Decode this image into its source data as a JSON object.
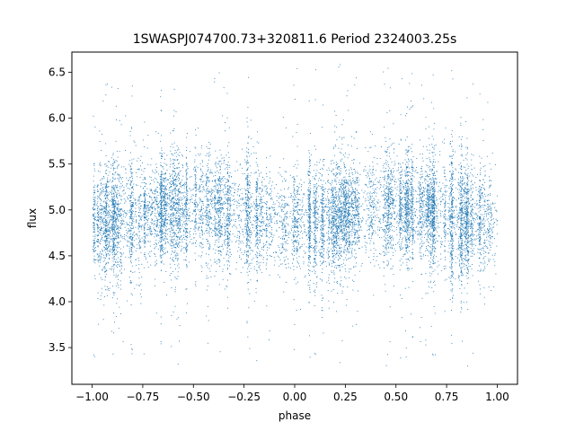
{
  "chart_data": {
    "type": "scatter",
    "title": "1SWASPJ074700.73+320811.6 Period 2324003.25s",
    "xlabel": "phase",
    "ylabel": "flux",
    "xlim": [
      -1.1,
      1.1
    ],
    "ylim": [
      3.1,
      6.72
    ],
    "xticks": [
      -1.0,
      -0.75,
      -0.5,
      -0.25,
      0.0,
      0.25,
      0.5,
      0.75,
      1.0
    ],
    "xtick_labels": [
      "−1.00",
      "−0.75",
      "−0.50",
      "−0.25",
      "0.00",
      "0.25",
      "0.50",
      "0.75",
      "1.00"
    ],
    "yticks": [
      3.5,
      4.0,
      4.5,
      5.0,
      5.5,
      6.0,
      6.5
    ],
    "ytick_labels": [
      "3.5",
      "4.0",
      "4.5",
      "5.0",
      "5.5",
      "6.0",
      "6.5"
    ],
    "grid": false,
    "marker_color": "#1f77b4",
    "series": [
      {
        "description": "phase-folded light curve, dense band of points",
        "x_range": [
          -1.0,
          1.0
        ],
        "center_flux": 4.95,
        "typical_flux_range": [
          4.3,
          5.6
        ],
        "outlier_flux_range": [
          3.3,
          6.6
        ],
        "sample_profile": [
          {
            "x": -1.0,
            "y": 4.9
          },
          {
            "x": -0.75,
            "y": 4.85
          },
          {
            "x": -0.5,
            "y": 5.05
          },
          {
            "x": -0.25,
            "y": 4.95
          },
          {
            "x": 0.0,
            "y": 4.75
          },
          {
            "x": 0.25,
            "y": 4.8
          },
          {
            "x": 0.5,
            "y": 5.05
          },
          {
            "x": 0.75,
            "y": 4.95
          },
          {
            "x": 1.0,
            "y": 4.85
          }
        ]
      }
    ]
  }
}
